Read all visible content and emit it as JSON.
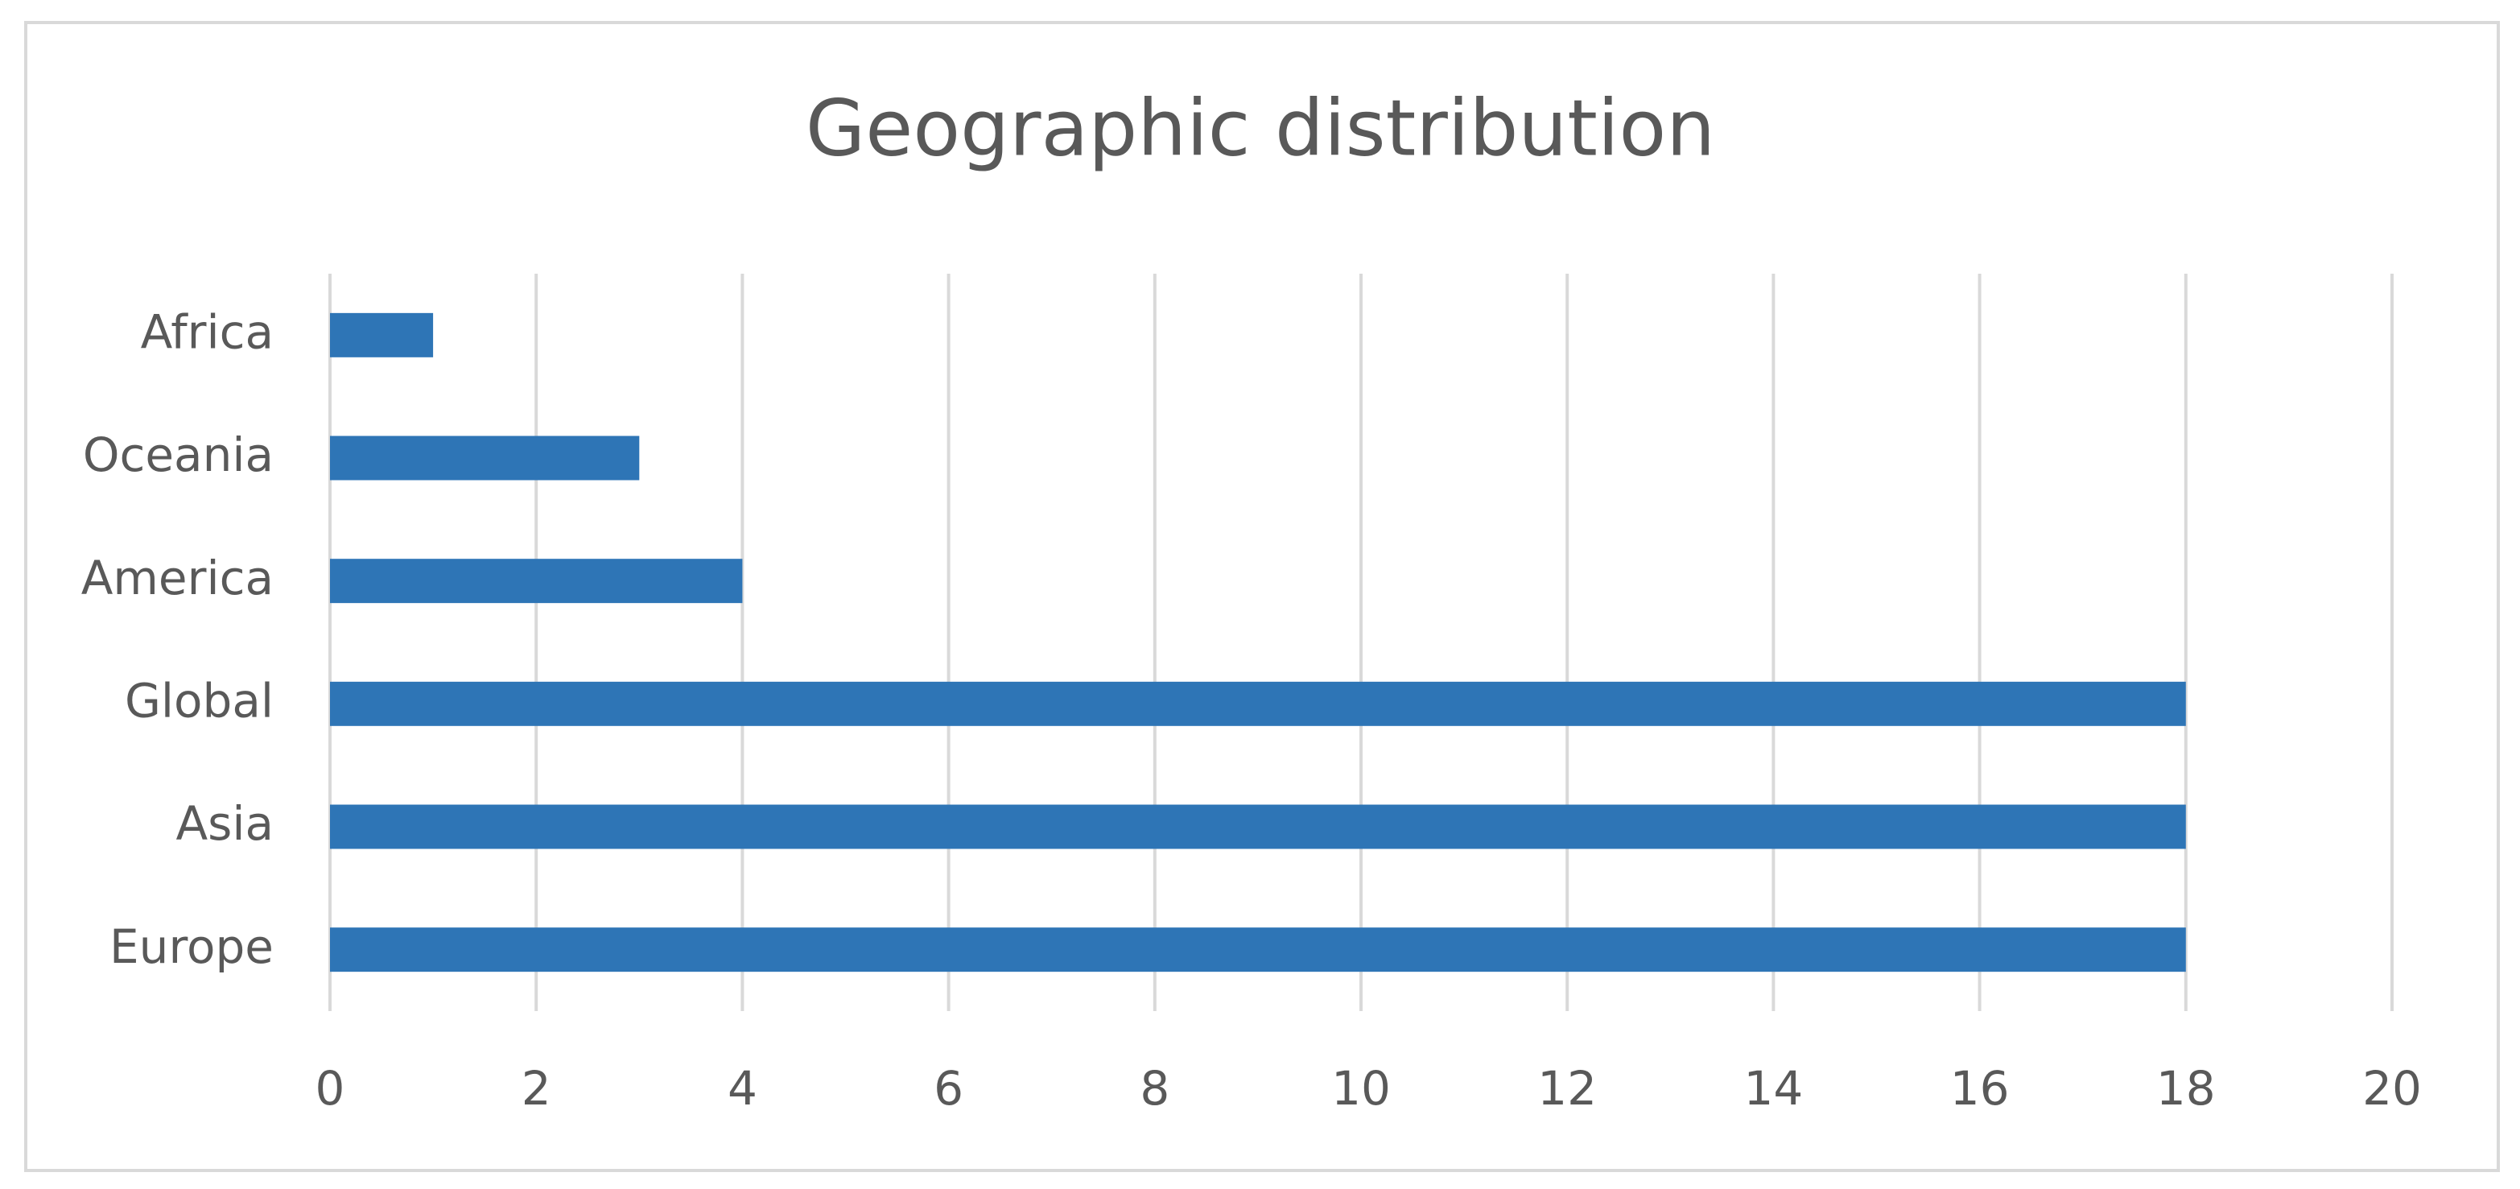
{
  "chart_data": {
    "type": "hbar",
    "title": "Geographic distribution",
    "categories": [
      "Europe",
      "Asia",
      "Global",
      "America",
      "Oceania",
      "Africa"
    ],
    "values": [
      18,
      18,
      18,
      4,
      3,
      1
    ],
    "color": "#2e75b6",
    "xlim": [
      0,
      20
    ],
    "xticks": [
      0,
      2,
      4,
      6,
      8,
      10,
      12,
      14,
      16,
      18,
      20
    ],
    "grid": true
  }
}
